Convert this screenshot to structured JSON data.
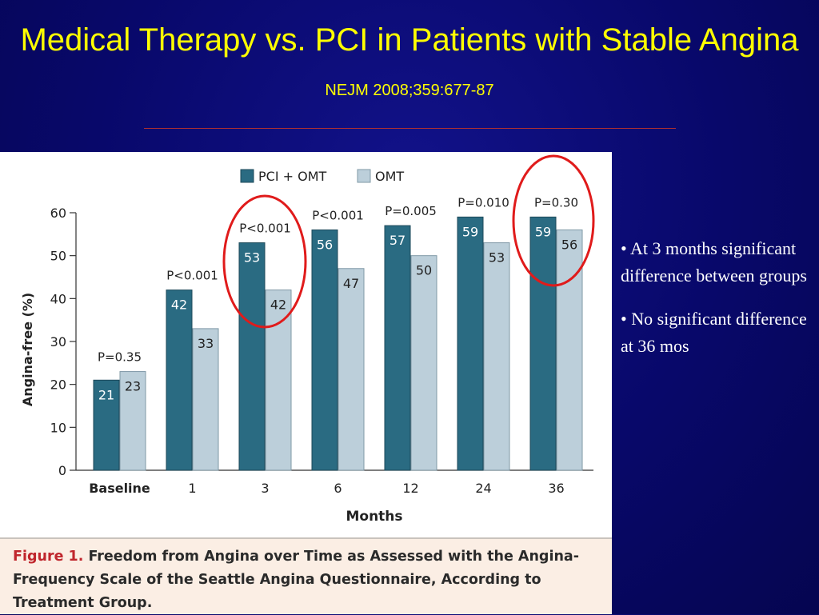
{
  "slide": {
    "title_main": "Medical Therapy vs. PCI in Patients with Stable Angina",
    "title_citation": "NEJM 2008;359:677-87"
  },
  "figure": {
    "caption_label": "Figure 1.",
    "caption_text": "Freedom from Angina over Time as Assessed with the Angina-Frequency Scale of the Seattle Angina Questionnaire, According to Treatment Group."
  },
  "bullets": [
    "• At 3 months significant difference between groups",
    "• No significant difference at 36 mos"
  ],
  "colors": {
    "pci_omt": "#2a6b82",
    "omt": "#bccfda",
    "highlight_circle": "#e01b1b",
    "title": "#ffff00",
    "caption_label": "#c0262d"
  },
  "chart_data": {
    "type": "bar",
    "xlabel": "Months",
    "ylabel": "Angina-free (%)",
    "ylim": [
      0,
      60
    ],
    "yticks": [
      0,
      10,
      20,
      30,
      40,
      50,
      60
    ],
    "categories": [
      "Baseline",
      "1",
      "3",
      "6",
      "12",
      "24",
      "36"
    ],
    "series": [
      {
        "name": "PCI + OMT",
        "color": "#2a6b82",
        "values": [
          21,
          42,
          53,
          56,
          57,
          59,
          59
        ]
      },
      {
        "name": "OMT",
        "color": "#bccfda",
        "values": [
          23,
          33,
          42,
          47,
          50,
          53,
          56
        ]
      }
    ],
    "p_values": [
      "P=0.35",
      "P<0.001",
      "P<0.001",
      "P<0.001",
      "P=0.005",
      "P=0.010",
      "P=0.30"
    ],
    "legend_position": "top",
    "grid": false,
    "highlighted_categories": [
      "3",
      "36"
    ]
  }
}
